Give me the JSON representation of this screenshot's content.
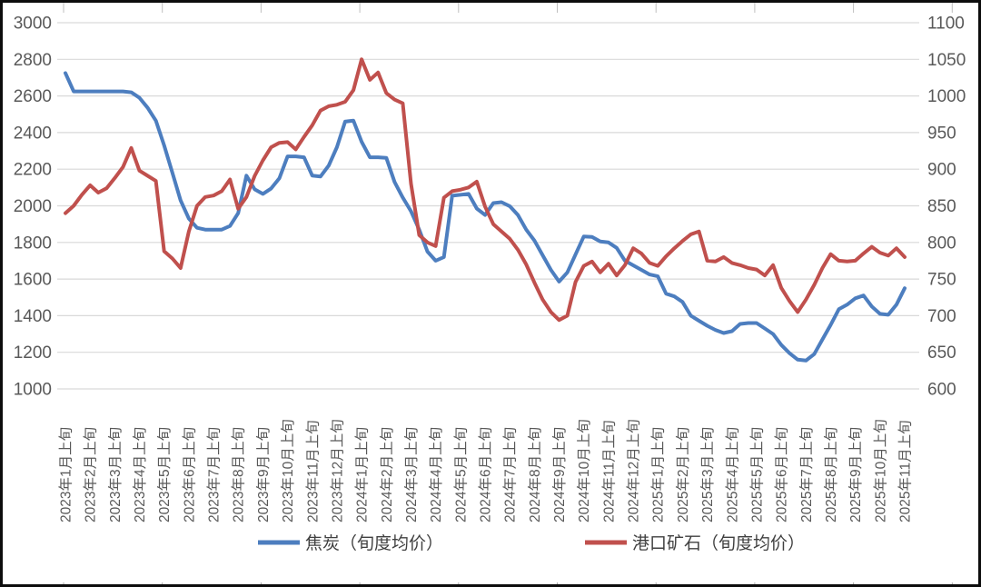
{
  "chart_data": {
    "type": "line",
    "title": "",
    "background_color": "#FFFFFF",
    "frame_color": "#0D0D0D",
    "gridline_color": "#D9D9D9",
    "axis_text_color": "#595959",
    "legend_text_color": "#404040",
    "grid": "horizontal-only",
    "legend_position": "bottom",
    "points_per_x_tick": 3,
    "left_axis": {
      "min": 1000,
      "max": 3000,
      "step": 200,
      "tick_labels": [
        "3000",
        "2800",
        "2600",
        "2400",
        "2200",
        "2000",
        "1800",
        "1600",
        "1400",
        "1200",
        "1000"
      ]
    },
    "right_axis": {
      "min": 600,
      "max": 1100,
      "step": 50,
      "tick_labels": [
        "1100",
        "1050",
        "1000",
        "950",
        "900",
        "850",
        "800",
        "750",
        "700",
        "650",
        "600"
      ]
    },
    "x_axis": {
      "tick_labels": [
        "2023年1月上旬",
        "2023年2月上旬",
        "2023年3月上旬",
        "2023年4月上旬",
        "2023年5月上旬",
        "2023年6月上旬",
        "2023年7月上旬",
        "2023年8月上旬",
        "2023年9月上旬",
        "2023年10月上旬",
        "2023年11月上旬",
        "2023年12月上旬",
        "2024年1月上旬",
        "2024年2月上旬",
        "2024年3月上旬",
        "2024年4月上旬",
        "2024年5月上旬",
        "2024年6月上旬",
        "2024年7月上旬",
        "2024年8月上旬",
        "2024年9月上旬",
        "2024年10月上旬",
        "2024年11月上旬",
        "2024年12月上旬",
        "2025年1月上旬",
        "2025年2月上旬",
        "2025年3月上旬",
        "2025年4月上旬",
        "2025年5月上旬",
        "2025年6月上旬",
        "2025年7月上旬",
        "2025年8月上旬",
        "2025年9月上旬",
        "2025年10月上旬",
        "2025年11月上旬"
      ]
    },
    "series": [
      {
        "name": "焦炭（旬度均价）",
        "color": "#4D7EBF",
        "axis": "left",
        "values": [
          2725,
          2625,
          2625,
          2625,
          2625,
          2625,
          2625,
          2625,
          2620,
          2590,
          2535,
          2465,
          2330,
          2180,
          2030,
          1930,
          1880,
          1870,
          1870,
          1870,
          1890,
          1960,
          2165,
          2090,
          2065,
          2095,
          2150,
          2270,
          2270,
          2265,
          2165,
          2160,
          2220,
          2320,
          2460,
          2465,
          2350,
          2265,
          2265,
          2262,
          2130,
          2045,
          1970,
          1870,
          1750,
          1700,
          1720,
          2055,
          2060,
          2065,
          1985,
          1950,
          2015,
          2020,
          1998,
          1950,
          1870,
          1810,
          1730,
          1650,
          1586,
          1636,
          1734,
          1833,
          1830,
          1805,
          1800,
          1770,
          1700,
          1675,
          1650,
          1625,
          1615,
          1520,
          1505,
          1475,
          1400,
          1372,
          1345,
          1322,
          1305,
          1315,
          1355,
          1360,
          1360,
          1330,
          1300,
          1240,
          1195,
          1160,
          1155,
          1190,
          1270,
          1350,
          1435,
          1460,
          1495,
          1510,
          1450,
          1410,
          1405,
          1460,
          1550
        ]
      },
      {
        "name": "港口矿石（旬度均价）",
        "color": "#C0504D",
        "axis": "right",
        "values": [
          840,
          850,
          865,
          878,
          868,
          874,
          888,
          903,
          929,
          898,
          891,
          884,
          788,
          778,
          765,
          815,
          850,
          862,
          864,
          870,
          886,
          846,
          862,
          891,
          912,
          930,
          936,
          937,
          927,
          944,
          960,
          980,
          986,
          988,
          992,
          1008,
          1050,
          1022,
          1032,
          1004,
          995,
          990,
          880,
          810,
          800,
          795,
          861,
          870,
          872,
          875,
          883,
          849,
          825,
          815,
          805,
          790,
          770,
          745,
          722,
          705,
          694,
          700,
          746,
          768,
          774,
          759,
          771,
          755,
          769,
          792,
          785,
          772,
          768,
          781,
          792,
          802,
          811,
          815,
          775,
          774,
          780,
          772,
          769,
          765,
          763,
          755,
          769,
          738,
          720,
          705,
          722,
          742,
          765,
          784,
          775,
          774,
          775,
          785,
          794,
          786,
          782,
          792,
          780
        ]
      }
    ],
    "legend": [
      "焦炭（旬度均价）",
      "港口矿石（旬度均价）"
    ]
  }
}
